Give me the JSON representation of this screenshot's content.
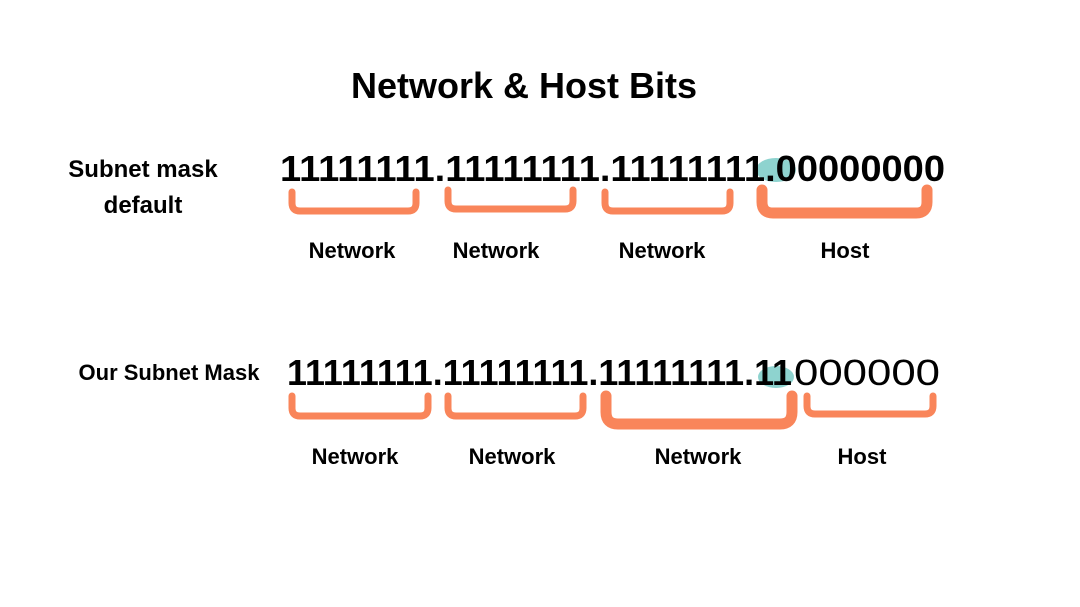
{
  "title": "Network & Host Bits",
  "colors": {
    "bracket": "#F9855A",
    "highlight": "#8ED3CF",
    "text": "#000000"
  },
  "rows": [
    {
      "label_lines": [
        "Subnet mask",
        "default"
      ],
      "bits": "11111111.11111111.11111111.00000000",
      "groups": [
        "Network",
        "Network",
        "Network",
        "Host"
      ]
    },
    {
      "label_lines": [
        "Our Subnet Mask"
      ],
      "bits_bold": "11111111.11111111.11111111.11",
      "bits_regular": "000000",
      "groups": [
        "Network",
        "Network",
        "Network",
        "Host"
      ]
    }
  ]
}
